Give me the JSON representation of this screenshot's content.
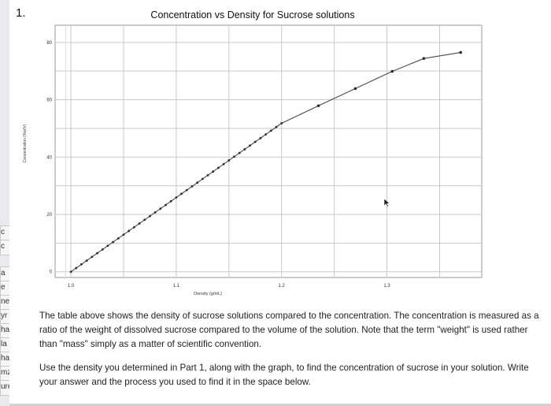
{
  "question": {
    "number": "1."
  },
  "left_fragments": [
    "c",
    "c",
    "a",
    "e",
    "ne",
    "yr",
    "ha",
    "la",
    "ha",
    "mz",
    "ure"
  ],
  "chart_data": {
    "type": "line",
    "title": "Concentration vs Density for Sucrose solutions",
    "xlabel": "Density (g/mL)",
    "ylabel": "Concentration (%w/V)",
    "xlim": [
      0.985,
      1.39
    ],
    "ylim": [
      -2,
      86
    ],
    "xticks": [
      {
        "value": 1.0,
        "label": "1.0"
      },
      {
        "value": 1.1,
        "label": "1.1"
      },
      {
        "value": 1.2,
        "label": "1.2"
      },
      {
        "value": 1.3,
        "label": "1.3"
      }
    ],
    "yticks": [
      {
        "value": 0,
        "label": "0"
      },
      {
        "value": 20,
        "label": "20"
      },
      {
        "value": 40,
        "label": "40"
      },
      {
        "value": 60,
        "label": "60"
      },
      {
        "value": 80,
        "label": "80"
      }
    ],
    "grid": true,
    "legend": "none",
    "line_color": "#4a4a4a",
    "series": [
      {
        "dense_segment": {
          "x_start": 1.0,
          "x_end": 1.2,
          "step": 0.005
        },
        "line_end": {
          "x": 1.37,
          "y": 76.5
        },
        "points": [
          {
            "x": 1.0,
            "y": 0.0
          },
          {
            "x": 1.2,
            "y": 51.8
          },
          {
            "x": 1.235,
            "y": 57.9
          },
          {
            "x": 1.27,
            "y": 63.9
          },
          {
            "x": 1.305,
            "y": 69.9
          },
          {
            "x": 1.335,
            "y": 74.4
          },
          {
            "x": 1.37,
            "y": 76.5
          }
        ]
      }
    ]
  },
  "text": {
    "paragraph1": "The table above shows the density of sucrose solutions compared to the concentration. The concentration is measured as a ratio of the weight of dissolved sucrose compared to the volume of the solution. Note that the term \"weight\" is used rather than \"mass\" simply as a matter of scientific convention.",
    "paragraph2": "Use the density you determined in Part 1, along with the graph, to find the concentration of sucrose in your solution. Write your answer and the process you used to find it in the space below."
  }
}
